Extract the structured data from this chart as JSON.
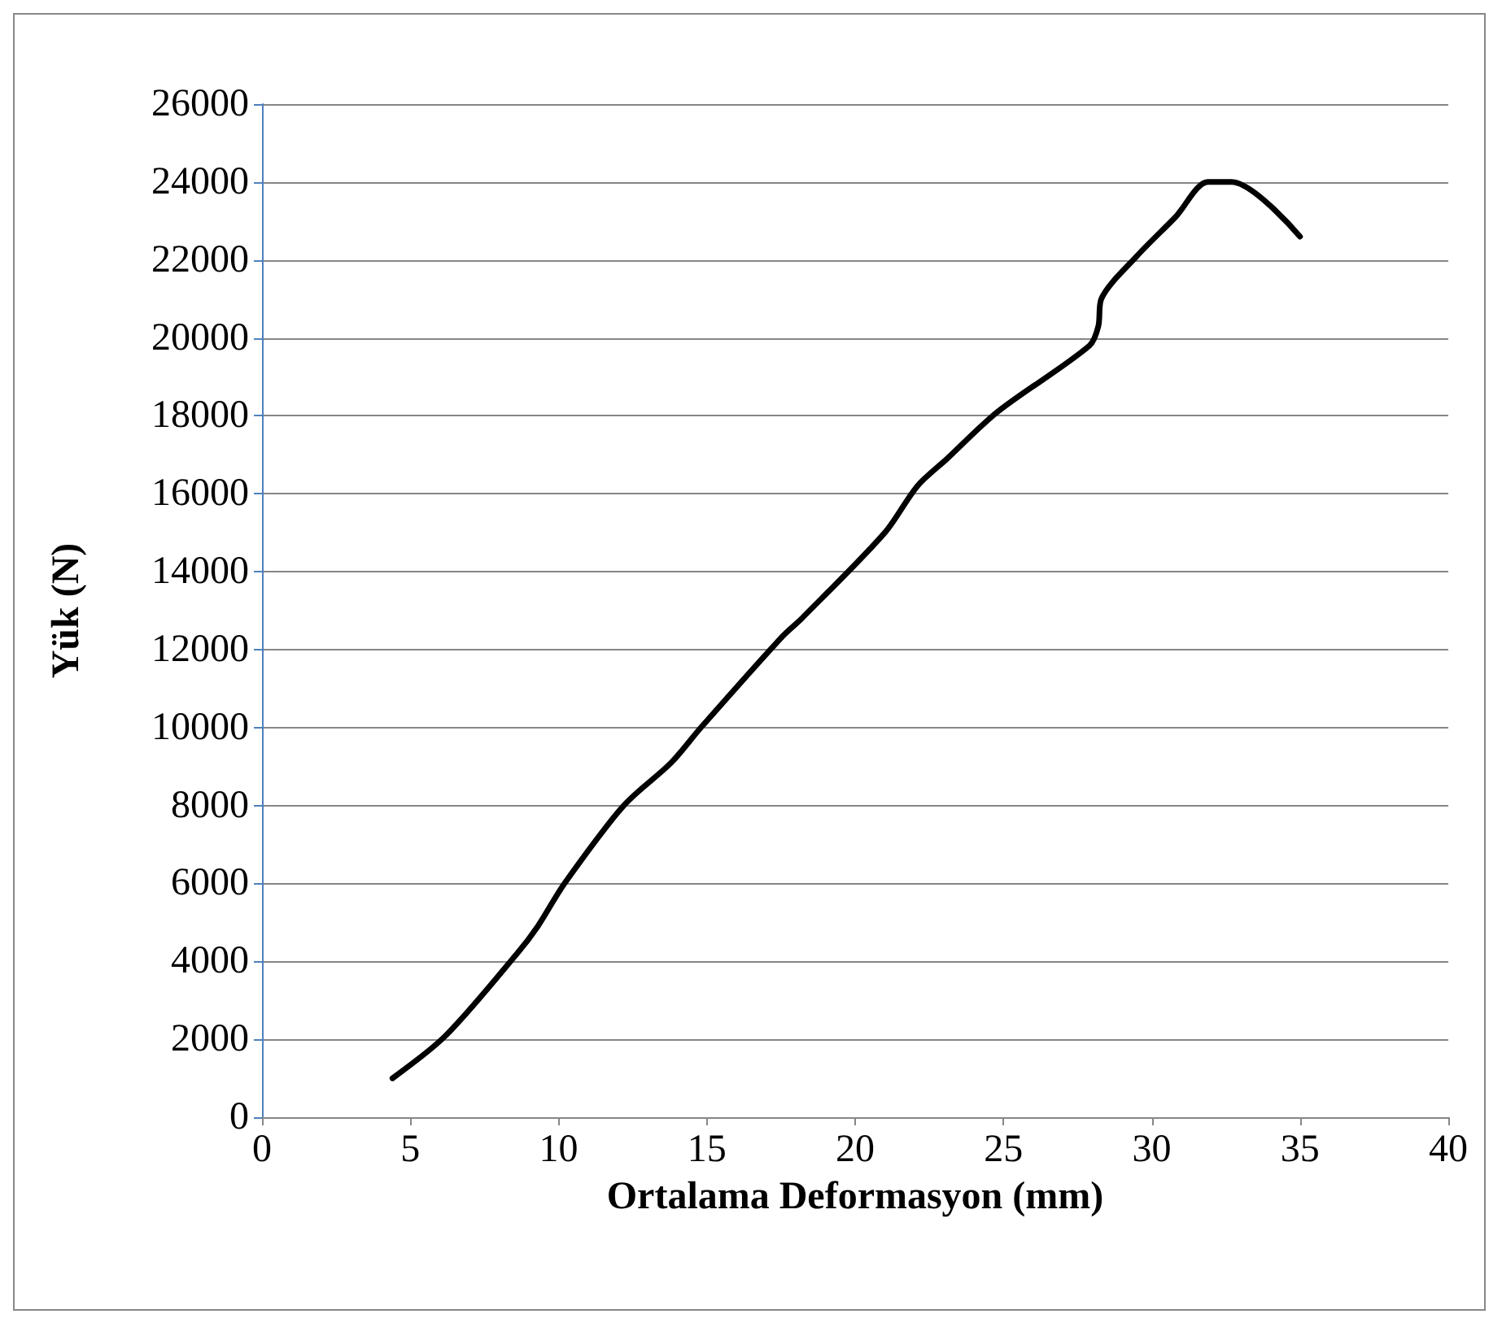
{
  "chart_data": {
    "type": "line",
    "xlabel": "Ortalama Deformasyon (mm)",
    "ylabel": "Yük (N)",
    "xlim": [
      0,
      40
    ],
    "xticks": [
      0,
      5,
      10,
      15,
      20,
      25,
      30,
      35,
      40
    ],
    "ylim": [
      0,
      26000
    ],
    "yticks": [
      0,
      2000,
      4000,
      6000,
      8000,
      10000,
      12000,
      14000,
      16000,
      18000,
      20000,
      22000,
      24000,
      26000
    ],
    "grid": "y",
    "marker": "none",
    "line_style": "solid",
    "series": [
      {
        "color": "#000000",
        "x": [
          4.4,
          6.2,
          8.6,
          9.3,
          10.2,
          12.2,
          13.8,
          14.8,
          17.5,
          18.2,
          21.0,
          22.1,
          23.1,
          24.8,
          27.9,
          28.2,
          28.3,
          29.5,
          30.8,
          31.9,
          32.7,
          35.0
        ],
        "values": [
          1000,
          2100,
          4200,
          4900,
          6000,
          8000,
          9100,
          10000,
          12300,
          12800,
          15000,
          16200,
          16900,
          18100,
          19800,
          20300,
          21000,
          22100,
          23100,
          24000,
          24000,
          22600
        ]
      }
    ]
  }
}
